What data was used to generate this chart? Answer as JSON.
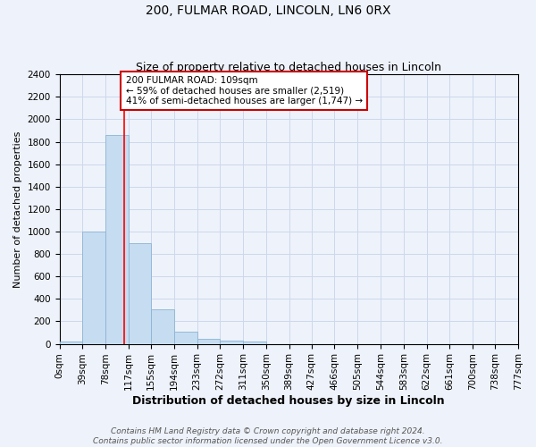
{
  "title": "200, FULMAR ROAD, LINCOLN, LN6 0RX",
  "subtitle": "Size of property relative to detached houses in Lincoln",
  "xlabel": "Distribution of detached houses by size in Lincoln",
  "ylabel": "Number of detached properties",
  "bar_edges": [
    0,
    39,
    78,
    117,
    155,
    194,
    233,
    272,
    311,
    350,
    389,
    427,
    466,
    505,
    544,
    583,
    622,
    661,
    700,
    738,
    777
  ],
  "bar_heights": [
    20,
    1000,
    1860,
    900,
    305,
    105,
    45,
    30,
    20,
    0,
    0,
    0,
    0,
    0,
    0,
    0,
    0,
    0,
    0,
    0
  ],
  "bar_color": "#c6dcf0",
  "bar_edge_color": "#8ab4d4",
  "vline_x": 109,
  "vline_color": "red",
  "ylim": [
    0,
    2400
  ],
  "yticks": [
    0,
    200,
    400,
    600,
    800,
    1000,
    1200,
    1400,
    1600,
    1800,
    2000,
    2200,
    2400
  ],
  "xtick_labels": [
    "0sqm",
    "39sqm",
    "78sqm",
    "117sqm",
    "155sqm",
    "194sqm",
    "233sqm",
    "272sqm",
    "311sqm",
    "350sqm",
    "389sqm",
    "427sqm",
    "466sqm",
    "505sqm",
    "544sqm",
    "583sqm",
    "622sqm",
    "661sqm",
    "700sqm",
    "738sqm",
    "777sqm"
  ],
  "annotation_text": "200 FULMAR ROAD: 109sqm\n← 59% of detached houses are smaller (2,519)\n41% of semi-detached houses are larger (1,747) →",
  "annotation_box_facecolor": "#ffffff",
  "annotation_box_edgecolor": "#cc0000",
  "grid_color": "#ccd8ee",
  "background_color": "#eef2fa",
  "footer_line1": "Contains HM Land Registry data © Crown copyright and database right 2024.",
  "footer_line2": "Contains public sector information licensed under the Open Government Licence v3.0.",
  "title_fontsize": 10,
  "subtitle_fontsize": 9,
  "xlabel_fontsize": 9,
  "ylabel_fontsize": 8,
  "tick_fontsize": 7.5,
  "annot_fontsize": 7.5,
  "footer_fontsize": 6.5
}
